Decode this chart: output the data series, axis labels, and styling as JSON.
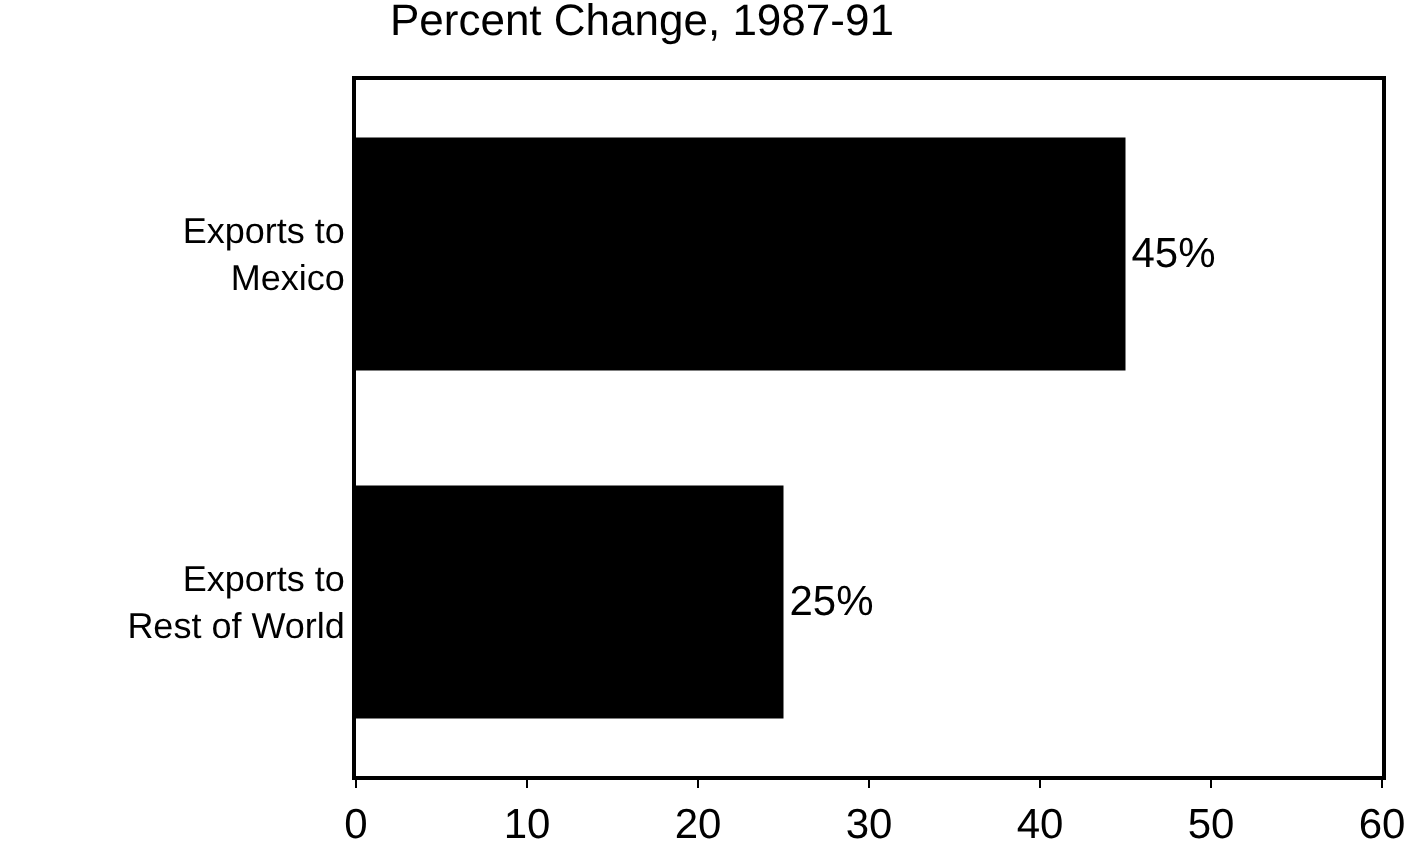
{
  "chart_data": {
    "type": "bar",
    "orientation": "horizontal",
    "title": "Percent Change, 1987-91",
    "categories": [
      "Exports to Mexico",
      "Exports to Rest of World"
    ],
    "values": [
      45,
      25
    ],
    "value_labels": [
      "45%",
      "25%"
    ],
    "color": "#000000",
    "xlim": [
      0,
      60
    ],
    "xticks": [
      0,
      10,
      20,
      30,
      40,
      50,
      60
    ]
  }
}
